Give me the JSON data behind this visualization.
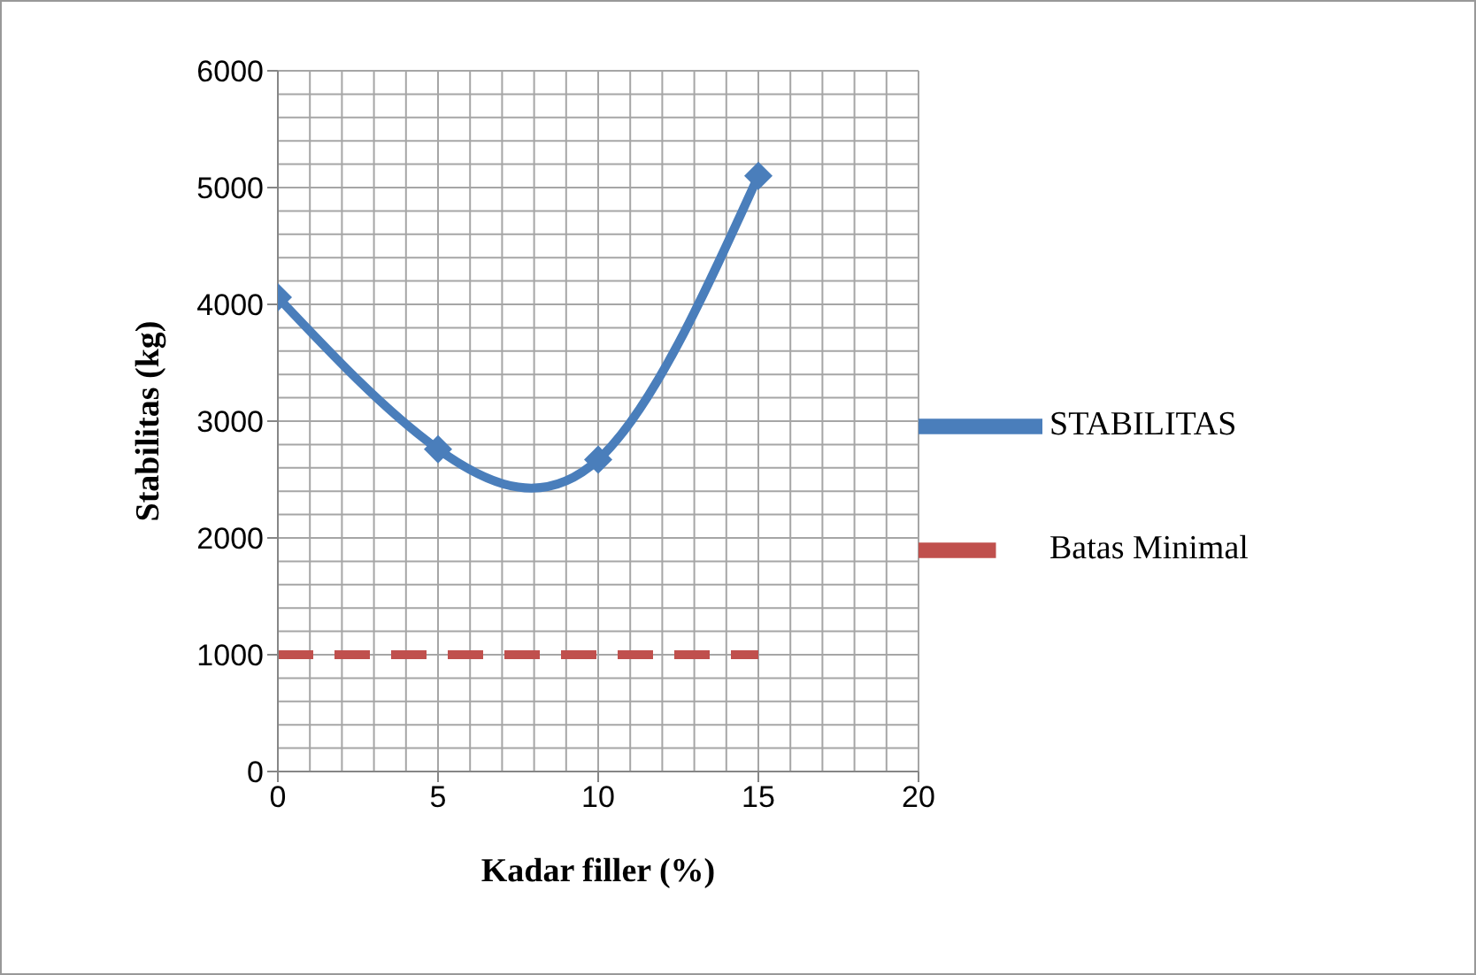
{
  "chart_data": {
    "type": "line",
    "xlabel": "Kadar filler (%)",
    "ylabel": "Stabilitas (kg)",
    "series": [
      {
        "name": "STABILITAS",
        "color": "#4a7ebb",
        "x": [
          0,
          5,
          10,
          15
        ],
        "values": [
          4060,
          2760,
          2670,
          5100
        ],
        "marker": "diamond",
        "line_style": "solid"
      },
      {
        "name": "Batas Minimal",
        "color": "#c0504d",
        "x": [
          0,
          5,
          10,
          15
        ],
        "values": [
          1000,
          1000,
          1000,
          1000
        ],
        "marker": "none",
        "line_style": "dashed"
      }
    ],
    "xlim": [
      0,
      20
    ],
    "xticks": [
      0,
      5,
      10,
      15,
      20
    ],
    "ylim": [
      0,
      6000
    ],
    "yticks": [
      0,
      1000,
      2000,
      3000,
      4000,
      5000,
      6000
    ],
    "grid": true,
    "legend": "right"
  }
}
